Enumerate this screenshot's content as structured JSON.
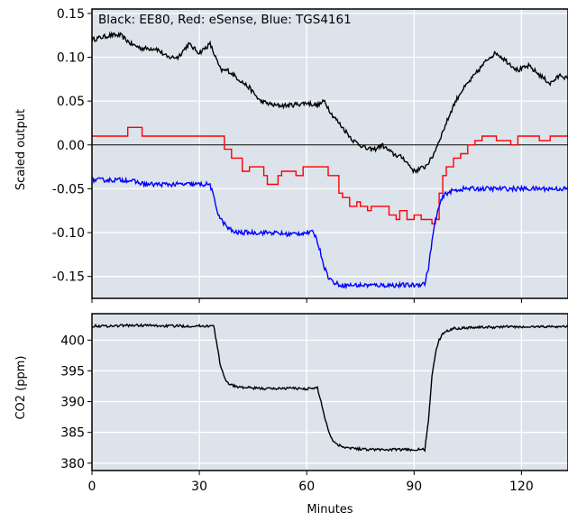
{
  "colors": {
    "plot_background": "#dde3eb",
    "grid": "#ffffff",
    "black_series": "#000000",
    "red_series": "#ff0000",
    "blue_series": "#0000ff",
    "zero_line": "#000000",
    "frame": "#000000",
    "text": "#000000"
  },
  "chart_data": [
    {
      "type": "line",
      "title": "",
      "annotation": "Black: EE80, Red: eSense, Blue: TGS4161",
      "xlabel": "",
      "ylabel": "Scaled output",
      "xlim": [
        0,
        133
      ],
      "ylim": [
        -0.175,
        0.155
      ],
      "xticks": [
        0,
        30,
        60,
        90,
        120
      ],
      "yticks": [
        -0.15,
        -0.1,
        -0.05,
        0.0,
        0.05,
        0.1,
        0.15
      ],
      "ytick_labels": [
        "-0.15",
        "-0.10",
        "-0.05",
        "0.00",
        "0.05",
        "0.10",
        "0.15"
      ],
      "reference_line_y": 0.0,
      "grid": true,
      "series": [
        {
          "color_key": "black_series",
          "x": [
            0,
            5,
            8,
            11,
            14,
            18,
            21,
            24,
            27,
            30,
            33,
            36,
            38,
            41,
            44,
            47,
            51,
            55,
            60,
            63,
            65,
            67,
            70,
            73,
            75,
            77,
            79,
            81,
            84,
            87,
            90,
            93,
            95,
            97,
            99,
            101,
            103,
            106,
            109,
            111,
            113,
            116,
            119,
            122,
            125,
            128,
            131,
            133
          ],
          "y": [
            0.12,
            0.125,
            0.125,
            0.115,
            0.11,
            0.11,
            0.1,
            0.1,
            0.115,
            0.105,
            0.115,
            0.085,
            0.085,
            0.075,
            0.065,
            0.05,
            0.045,
            0.045,
            0.048,
            0.045,
            0.05,
            0.035,
            0.02,
            0.005,
            0.0,
            -0.005,
            -0.005,
            0.0,
            -0.01,
            -0.015,
            -0.03,
            -0.025,
            -0.015,
            0.005,
            0.025,
            0.045,
            0.06,
            0.075,
            0.09,
            0.1,
            0.105,
            0.095,
            0.085,
            0.09,
            0.08,
            0.07,
            0.08,
            0.075
          ]
        },
        {
          "color_key": "red_series",
          "x": [
            0,
            8,
            10,
            12,
            14,
            18,
            36,
            37,
            39,
            42,
            44,
            48,
            49,
            52,
            53,
            57,
            59,
            62,
            65,
            66,
            69,
            70,
            72,
            74,
            75,
            77,
            78,
            80,
            83,
            85,
            86,
            88,
            90,
            92,
            94,
            95,
            96,
            97,
            98,
            99,
            101,
            103,
            105,
            107,
            109,
            113,
            117,
            119,
            125,
            128,
            131,
            133
          ],
          "y": [
            0.01,
            0.01,
            0.02,
            0.02,
            0.01,
            0.01,
            0.01,
            -0.005,
            -0.015,
            -0.03,
            -0.025,
            -0.035,
            -0.045,
            -0.035,
            -0.03,
            -0.035,
            -0.025,
            -0.025,
            -0.025,
            -0.035,
            -0.055,
            -0.06,
            -0.07,
            -0.065,
            -0.07,
            -0.075,
            -0.07,
            -0.07,
            -0.08,
            -0.085,
            -0.075,
            -0.085,
            -0.08,
            -0.085,
            -0.085,
            -0.09,
            -0.085,
            -0.055,
            -0.035,
            -0.025,
            -0.015,
            -0.01,
            0.0,
            0.005,
            0.01,
            0.005,
            0.0,
            0.01,
            0.005,
            0.01,
            0.01,
            0.01
          ]
        },
        {
          "color_key": "blue_series",
          "x": [
            0,
            5,
            10,
            15,
            20,
            25,
            30,
            33,
            34,
            35,
            36,
            37,
            38,
            40,
            45,
            50,
            55,
            60,
            62,
            63,
            64,
            65,
            66,
            67,
            68,
            70,
            75,
            80,
            85,
            90,
            93,
            94,
            95,
            96,
            97,
            98,
            99,
            101,
            104,
            108,
            112,
            116,
            120,
            124,
            128,
            133
          ],
          "y": [
            -0.04,
            -0.04,
            -0.04,
            -0.045,
            -0.045,
            -0.045,
            -0.045,
            -0.045,
            -0.06,
            -0.075,
            -0.085,
            -0.09,
            -0.095,
            -0.1,
            -0.1,
            -0.1,
            -0.102,
            -0.1,
            -0.1,
            -0.11,
            -0.125,
            -0.14,
            -0.15,
            -0.155,
            -0.158,
            -0.16,
            -0.16,
            -0.16,
            -0.16,
            -0.16,
            -0.158,
            -0.14,
            -0.11,
            -0.085,
            -0.07,
            -0.06,
            -0.055,
            -0.052,
            -0.05,
            -0.05,
            -0.05,
            -0.05,
            -0.05,
            -0.05,
            -0.05,
            -0.05
          ]
        }
      ]
    },
    {
      "type": "line",
      "title": "",
      "xlabel": "Minutes",
      "ylabel": "CO2 (ppm)",
      "xlim": [
        0,
        133
      ],
      "ylim": [
        378.8,
        404.3
      ],
      "xticks": [
        0,
        30,
        60,
        90,
        120
      ],
      "yticks": [
        380,
        385,
        390,
        395,
        400
      ],
      "grid": true,
      "series": [
        {
          "color_key": "black_series",
          "x": [
            0,
            5,
            10,
            15,
            20,
            25,
            30,
            34,
            35,
            36,
            37,
            38,
            40,
            42,
            45,
            50,
            55,
            60,
            63,
            64,
            65,
            66,
            67,
            68,
            70,
            72,
            75,
            80,
            85,
            90,
            93,
            94,
            95,
            96,
            97,
            98,
            99,
            101,
            104,
            108,
            112,
            116,
            120,
            125,
            133
          ],
          "y": [
            402.3,
            402.3,
            402.4,
            402.4,
            402.3,
            402.3,
            402.3,
            402.3,
            399.0,
            395.5,
            394.0,
            393.0,
            392.5,
            392.3,
            392.2,
            392.1,
            392.2,
            392.1,
            392.2,
            390.0,
            387.5,
            385.5,
            384.0,
            383.2,
            382.7,
            382.5,
            382.3,
            382.2,
            382.2,
            382.2,
            382.2,
            387.0,
            394.0,
            398.0,
            400.0,
            401.0,
            401.5,
            401.9,
            402.0,
            402.1,
            402.1,
            402.2,
            402.1,
            402.2,
            402.2
          ]
        }
      ]
    }
  ]
}
